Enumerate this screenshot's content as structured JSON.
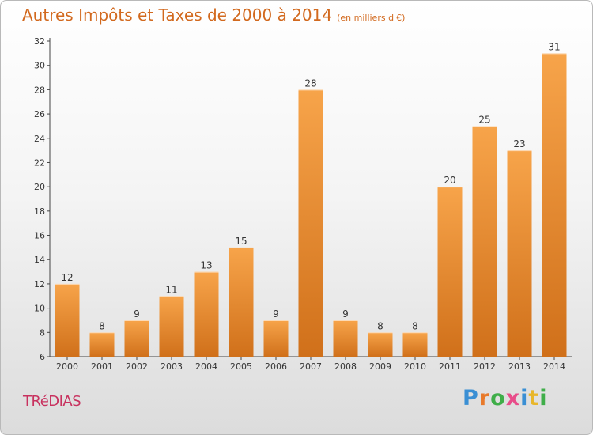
{
  "title": "Autres Impôts et Taxes de 2000 à 2014",
  "unit_label": "(en milliers d'€)",
  "location": "TRéDIAS",
  "logo": {
    "text": "Proxiti",
    "letters": [
      {
        "ch": "P",
        "color": "#3a8fd4"
      },
      {
        "ch": "r",
        "color": "#e8792a"
      },
      {
        "ch": "o",
        "color": "#3fae49"
      },
      {
        "ch": "x",
        "color": "#e84d8a"
      },
      {
        "ch": "i",
        "color": "#3a8fd4"
      },
      {
        "ch": "t",
        "color": "#e8b62a"
      },
      {
        "ch": "i",
        "color": "#3fae49"
      }
    ]
  },
  "colors": {
    "bar_light": "#f7a44a",
    "bar_dark": "#d0701a",
    "title": "#d2691e",
    "location": "#c8325f"
  },
  "chart_data": {
    "type": "bar",
    "categories": [
      "2000",
      "2001",
      "2002",
      "2003",
      "2004",
      "2005",
      "2006",
      "2007",
      "2008",
      "2009",
      "2010",
      "2011",
      "2012",
      "2013",
      "2014"
    ],
    "values": [
      12,
      8,
      9,
      11,
      13,
      15,
      9,
      28,
      9,
      8,
      8,
      20,
      25,
      23,
      31
    ],
    "title": "Autres Impôts et Taxes de 2000 à 2014",
    "xlabel": "",
    "ylabel": "",
    "ylim": [
      6,
      32
    ],
    "yticks": [
      6,
      8,
      10,
      12,
      14,
      16,
      18,
      20,
      22,
      24,
      26,
      28,
      30,
      32
    ],
    "grid": false,
    "legend": "none"
  }
}
